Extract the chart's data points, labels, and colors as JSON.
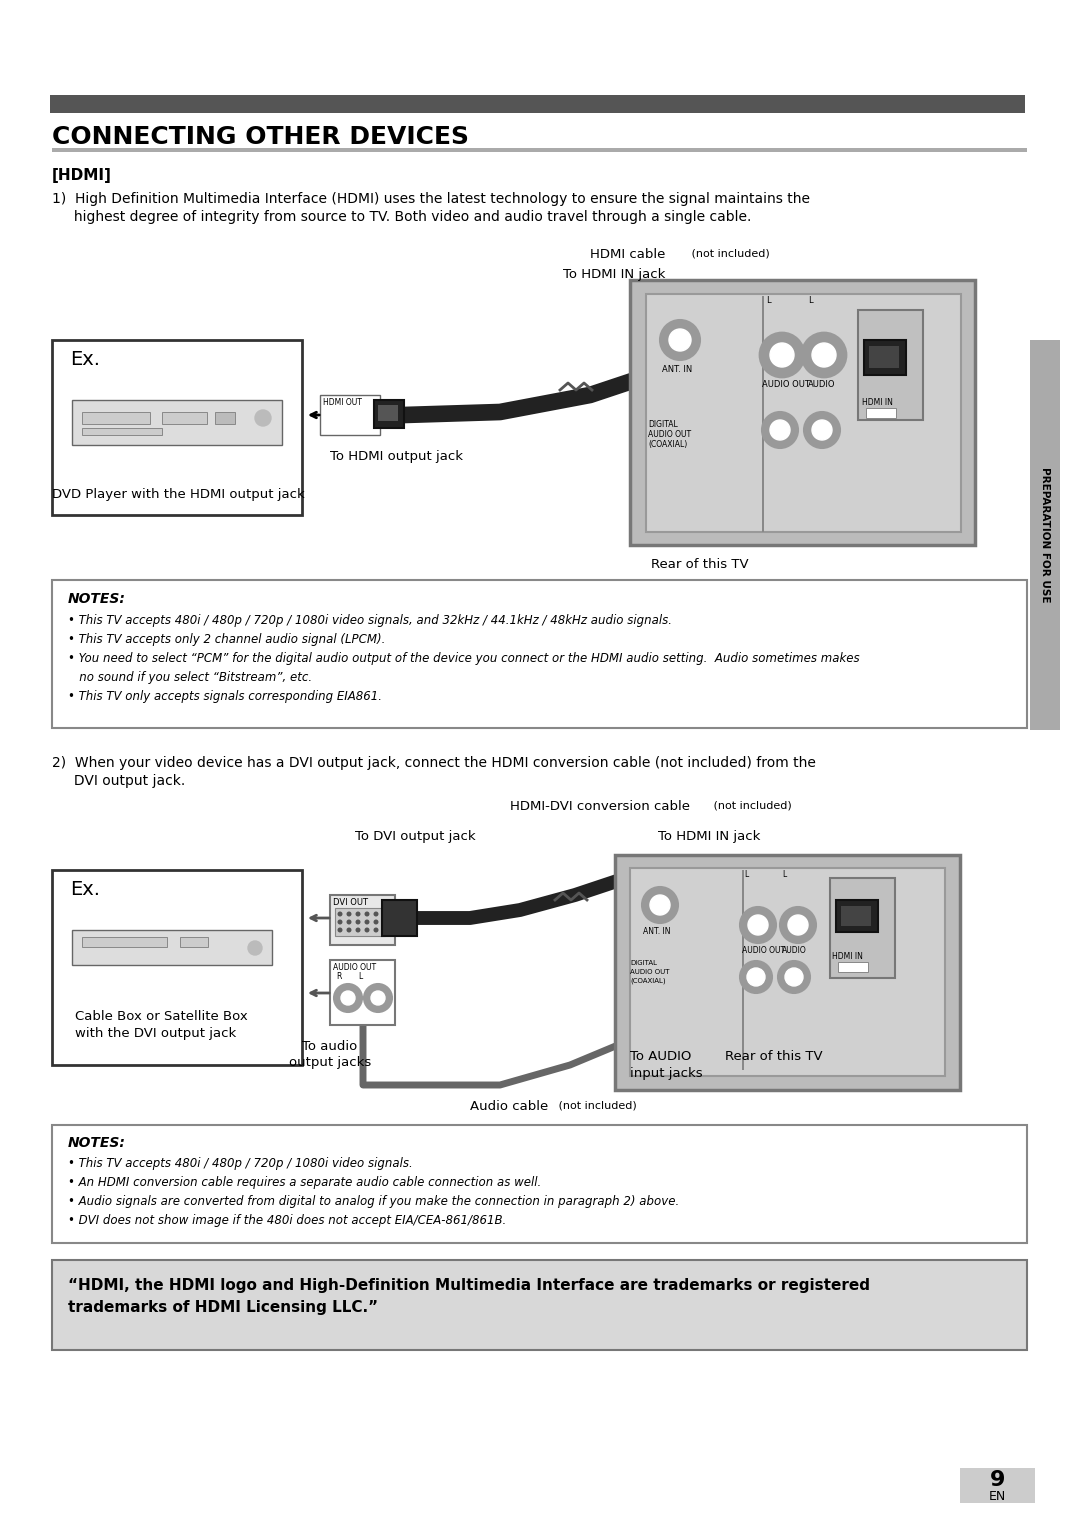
{
  "page_bg": "#ffffff",
  "title_text": "CONNECTING OTHER DEVICES",
  "section_hdmi_label": "[HDMI]",
  "para1_line1": "1)  High Definition Multimedia Interface (HDMI) uses the latest technology to ensure the signal maintains the",
  "para1_line2": "     highest degree of integrity from source to TV. Both video and audio travel through a single cable.",
  "hdmi_cable_label": "HDMI cable",
  "hdmi_cable_notincluded": " (not included)",
  "to_hdmi_in_jack": "To HDMI IN jack",
  "to_hdmi_output_jack": "To HDMI output jack",
  "dvd_label": "DVD Player with the HDMI output jack",
  "rear_tv_label1": "Rear of this TV",
  "notes1_title": "NOTES:",
  "notes1_bullets": [
    "• This TV accepts 480i / 480p / 720p / 1080i video signals, and 32kHz / 44.1kHz / 48kHz audio signals.",
    "• This TV accepts only 2 channel audio signal (LPCM).",
    "• You need to select “PCM” for the digital audio output of the device you connect or the HDMI audio setting.  Audio sometimes makes",
    "   no sound if you select “Bitstream”, etc.",
    "• This TV only accepts signals corresponding EIA861."
  ],
  "para2_line1": "2)  When your video device has a DVI output jack, connect the HDMI conversion cable (not included) from the",
  "para2_line2": "     DVI output jack.",
  "hdmi_dvi_label": "HDMI-DVI conversion cable",
  "hdmi_dvi_notincluded": " (not included)",
  "to_dvi_output_jack": "To DVI output jack",
  "to_hdmi_in2": "To HDMI IN jack",
  "cable_box_label1": "Cable Box or Satellite Box",
  "cable_box_label2": "with the DVI output jack",
  "to_audio_output_label1": "To audio",
  "to_audio_output_label2": "output jacks",
  "to_audio_input_label1": "To AUDIO",
  "to_audio_input_label2": "input jacks",
  "rear_tv2_label": "Rear of this TV",
  "audio_cable_label": "Audio cable",
  "audio_cable_notincluded": " (not included)",
  "notes2_title": "NOTES:",
  "notes2_bullets": [
    "• This TV accepts 480i / 480p / 720p / 1080i video signals.",
    "• An HDMI conversion cable requires a separate audio cable connection as well.",
    "• Audio signals are converted from digital to analog if you make the connection in paragraph 2) above.",
    "• DVI does not show image if the 480i does not accept EIA/CEA-861/861B."
  ],
  "trademark_text1": "“HDMI, the HDMI logo and High-Definition Multimedia Interface are trademarks or registered",
  "trademark_text2": "trademarks of HDMI Licensing LLC.”",
  "page_number": "9",
  "en_label": "EN",
  "sidebar_text": "PREPARATION FOR USE"
}
